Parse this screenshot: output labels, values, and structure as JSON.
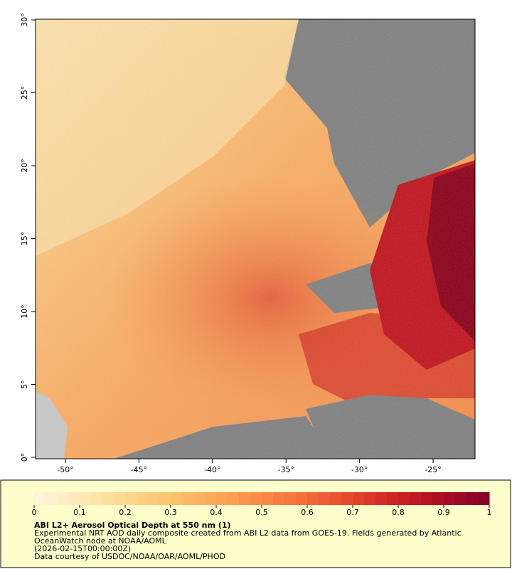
{
  "map": {
    "xlim": [
      -52.03,
      -22.15
    ],
    "ylim": [
      -0.1,
      30.05
    ],
    "xticks": [
      {
        "value": -50,
        "label": "-50°"
      },
      {
        "value": -45,
        "label": "-45°"
      },
      {
        "value": -40,
        "label": "-40°"
      },
      {
        "value": -35,
        "label": "-35°"
      },
      {
        "value": -30,
        "label": "-30°"
      },
      {
        "value": -25,
        "label": "-25°"
      }
    ],
    "yticks": [
      {
        "value": 0,
        "label": "0°"
      },
      {
        "value": 5,
        "label": "5°"
      },
      {
        "value": 10,
        "label": "10°"
      },
      {
        "value": 15,
        "label": "15°"
      },
      {
        "value": 20,
        "label": "20°"
      },
      {
        "value": 25,
        "label": "25°"
      },
      {
        "value": 30,
        "label": "30°"
      }
    ]
  },
  "colorbar": {
    "lim": [
      0,
      1
    ],
    "ticks": [
      0,
      0.1,
      0.2,
      0.3,
      0.4,
      0.5,
      0.6,
      0.7,
      0.8,
      0.9,
      1
    ],
    "colors": [
      "#fff5dc",
      "#feeab8",
      "#fed98f",
      "#fdc36d",
      "#fca858",
      "#fa8a47",
      "#f36b3a",
      "#e5462d",
      "#cd2022",
      "#a90c22",
      "#800026"
    ]
  },
  "legend": {
    "title": "ABI L2+ Aerosol Optical Depth at 550 nm (1)",
    "lines": [
      "Experimental NRT AOD daily composite created from ABI L2 data from GOES-19. Fields generated by Atlantic",
      "OceanWatch node at NOAA/AOML",
      "(2026-02-15T00:00:00Z)",
      "Data courtesy of USDOC/NOAA/OAR/AOML/PHOD"
    ]
  }
}
